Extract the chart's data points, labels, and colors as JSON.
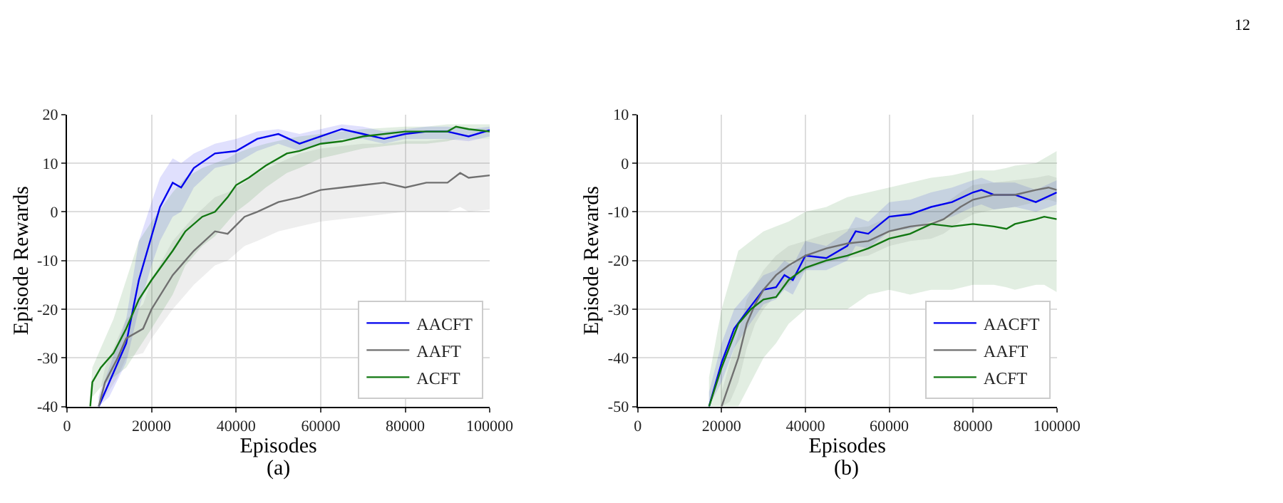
{
  "chart_data": [
    {
      "type": "line",
      "xlabel": "Episodes",
      "ylabel": "Episode Rewards",
      "annotations": [
        "(a)"
      ],
      "xlim": [
        0,
        100000
      ],
      "xticks": [
        0,
        20000,
        40000,
        60000,
        80000,
        100000
      ],
      "ylim": [
        -40,
        20
      ],
      "yticks": [
        -40,
        -30,
        -20,
        -10,
        0,
        10,
        20
      ],
      "grid": true,
      "legend": "bottom right",
      "series": [
        {
          "name": "AACFT",
          "color": "#0000ee",
          "x": [
            7500,
            10000,
            14000,
            17000,
            20000,
            22000,
            25000,
            27000,
            30000,
            35000,
            40000,
            45000,
            50000,
            55000,
            60000,
            65000,
            70000,
            75000,
            80000,
            85000,
            90000,
            95000,
            100000
          ],
          "values": [
            -40,
            -35,
            -27,
            -14,
            -5,
            1,
            6,
            5,
            9,
            12,
            12.5,
            15,
            16,
            14,
            15.5,
            17,
            16,
            15,
            16,
            16.5,
            16.5,
            15.5,
            16.8
          ],
          "lower": [
            -40,
            -38,
            -31,
            -20,
            -11,
            -6,
            -1,
            0,
            5,
            9,
            10,
            12.5,
            14,
            12.5,
            14,
            15,
            15,
            14,
            15,
            15,
            15,
            14.5,
            15.5
          ],
          "upper": [
            -38,
            -32,
            -22,
            -6,
            2,
            7,
            11,
            10,
            12,
            14,
            15,
            16.5,
            17,
            16,
            17,
            18,
            17.5,
            16.5,
            17,
            17.5,
            17.5,
            17,
            17.5
          ]
        },
        {
          "name": "AAFT",
          "color": "#707070",
          "x": [
            7500,
            9000,
            12000,
            14000,
            18000,
            20000,
            25000,
            30000,
            35000,
            38000,
            42000,
            45000,
            50000,
            55000,
            60000,
            65000,
            70000,
            75000,
            80000,
            85000,
            90000,
            93000,
            95000,
            100000
          ],
          "values": [
            -40,
            -35,
            -30,
            -26,
            -24,
            -20,
            -13,
            -8,
            -4,
            -4.5,
            -1,
            0,
            2,
            3,
            4.5,
            5,
            5.5,
            6,
            5,
            6,
            6,
            8,
            7,
            7.5
          ],
          "lower": [
            -40,
            -38,
            -34,
            -30,
            -29,
            -26,
            -20,
            -15,
            -11,
            -10,
            -7,
            -6,
            -4,
            -3,
            -2,
            -1.5,
            -1,
            -0.5,
            0,
            0,
            0,
            1,
            0,
            0.5
          ],
          "upper": [
            -38,
            -32,
            -26,
            -22,
            -19,
            -14,
            -6,
            -1,
            3,
            4,
            6,
            8,
            10,
            12,
            13,
            13.5,
            14,
            14,
            14.5,
            14.5,
            15,
            15,
            15,
            15
          ]
        },
        {
          "name": "ACFT",
          "color": "#117711",
          "x": [
            5500,
            6000,
            8000,
            11000,
            14000,
            17000,
            20000,
            25000,
            28000,
            32000,
            35000,
            38000,
            40000,
            43000,
            47000,
            52000,
            55000,
            60000,
            65000,
            70000,
            80000,
            85000,
            90000,
            92000,
            95000,
            100000
          ],
          "values": [
            -40,
            -35,
            -32,
            -29,
            -24,
            -18,
            -14,
            -8,
            -4,
            -1,
            0,
            3,
            5.5,
            7,
            9.5,
            12,
            12.5,
            14,
            14.5,
            15.5,
            16.5,
            16.5,
            16.5,
            17.5,
            17,
            16.5
          ],
          "lower": [
            -40,
            -38,
            -36,
            -34,
            -32,
            -28,
            -24,
            -17,
            -11,
            -7,
            -5,
            -2,
            0,
            2,
            5,
            8,
            9,
            11,
            12,
            13,
            14,
            14,
            14.5,
            15,
            15,
            15
          ],
          "upper": [
            -38,
            -32,
            -28,
            -22,
            -14,
            -6,
            -2,
            4,
            7,
            9,
            10,
            11,
            12,
            13,
            14,
            15,
            15.5,
            16,
            16.5,
            17,
            17.5,
            17.5,
            18,
            18,
            18,
            18
          ]
        }
      ]
    },
    {
      "type": "line",
      "xlabel": "Episodes",
      "ylabel": "Episode Rewards",
      "annotations": [
        "(b)",
        "12"
      ],
      "xlim": [
        0,
        100000
      ],
      "xticks": [
        0,
        20000,
        40000,
        60000,
        80000,
        100000
      ],
      "ylim": [
        -50,
        10
      ],
      "yticks": [
        -50,
        -40,
        -30,
        -20,
        -10,
        0,
        10
      ],
      "grid": true,
      "legend": "bottom right",
      "series": [
        {
          "name": "AACFT",
          "color": "#0000ee",
          "x": [
            17000,
            20000,
            23000,
            26000,
            30000,
            33000,
            35000,
            37000,
            40000,
            45000,
            50000,
            52000,
            55000,
            60000,
            65000,
            70000,
            75000,
            80000,
            82000,
            85000,
            90000,
            95000,
            100000
          ],
          "values": [
            -50,
            -41,
            -34,
            -30.5,
            -26,
            -25.5,
            -23,
            -24,
            -19,
            -19.5,
            -17,
            -14,
            -14.5,
            -11,
            -10.5,
            -9,
            -8,
            -6,
            -5.5,
            -6.5,
            -6.5,
            -8,
            -6
          ],
          "lower": [
            -50,
            -45,
            -38,
            -34,
            -29,
            -28,
            -26,
            -27,
            -22,
            -22,
            -20,
            -17,
            -17.5,
            -14,
            -13.5,
            -12,
            -11,
            -9,
            -8.5,
            -9.5,
            -9,
            -10,
            -8.5
          ],
          "upper": [
            -47,
            -37,
            -30,
            -27,
            -23,
            -22,
            -20,
            -21,
            -16,
            -17,
            -14,
            -11,
            -12,
            -8,
            -7.5,
            -6,
            -5,
            -3.5,
            -3,
            -4,
            -4,
            -5.5,
            -3.5
          ]
        },
        {
          "name": "AAFT",
          "color": "#707070",
          "x": [
            20000,
            22000,
            24000,
            26000,
            28000,
            30000,
            33000,
            36000,
            40000,
            45000,
            50000,
            55000,
            60000,
            65000,
            70000,
            73000,
            77000,
            80000,
            85000,
            90000,
            95000,
            98000,
            100000
          ],
          "values": [
            -50,
            -45,
            -40,
            -33,
            -29,
            -26,
            -23,
            -21,
            -19,
            -17.5,
            -16.5,
            -16,
            -14,
            -13,
            -12.5,
            -11.5,
            -9,
            -7.5,
            -6.5,
            -6.5,
            -5.5,
            -5,
            -5.5
          ],
          "lower": [
            -50,
            -49,
            -45,
            -38,
            -33,
            -30,
            -27,
            -25,
            -22,
            -20.5,
            -19.5,
            -19,
            -17,
            -16,
            -15.5,
            -14.5,
            -12,
            -10.5,
            -9.5,
            -9,
            -8,
            -7.5,
            -8
          ],
          "upper": [
            -47,
            -41,
            -35,
            -28,
            -25,
            -22,
            -19,
            -17,
            -16,
            -14.5,
            -13.5,
            -13,
            -11,
            -10,
            -9.5,
            -8.5,
            -6,
            -4.5,
            -4,
            -3.5,
            -3,
            -2.5,
            -3
          ]
        },
        {
          "name": "ACFT",
          "color": "#117711",
          "x": [
            17000,
            20000,
            24000,
            27000,
            30000,
            33000,
            36000,
            40000,
            45000,
            50000,
            55000,
            60000,
            65000,
            70000,
            75000,
            80000,
            85000,
            88000,
            90000,
            95000,
            97000,
            100000
          ],
          "values": [
            -50,
            -42,
            -33,
            -30,
            -28,
            -27.5,
            -24,
            -21.5,
            -20,
            -19,
            -17.5,
            -15.5,
            -14.5,
            -12.5,
            -13,
            -12.5,
            -13,
            -13.5,
            -12.5,
            -11.5,
            -11,
            -11.5
          ],
          "lower": [
            -50,
            -50,
            -50,
            -45,
            -40,
            -37,
            -33,
            -30,
            -30,
            -30,
            -27,
            -26,
            -27,
            -26,
            -26,
            -25,
            -25,
            -25.5,
            -26,
            -25,
            -25,
            -26.5
          ],
          "upper": [
            -44,
            -30,
            -18,
            -16,
            -14,
            -13,
            -12,
            -10,
            -9,
            -7,
            -6,
            -5,
            -4,
            -3,
            -2.5,
            -1.5,
            -1.5,
            -1,
            -0.5,
            0,
            1,
            2.5
          ]
        }
      ]
    }
  ]
}
